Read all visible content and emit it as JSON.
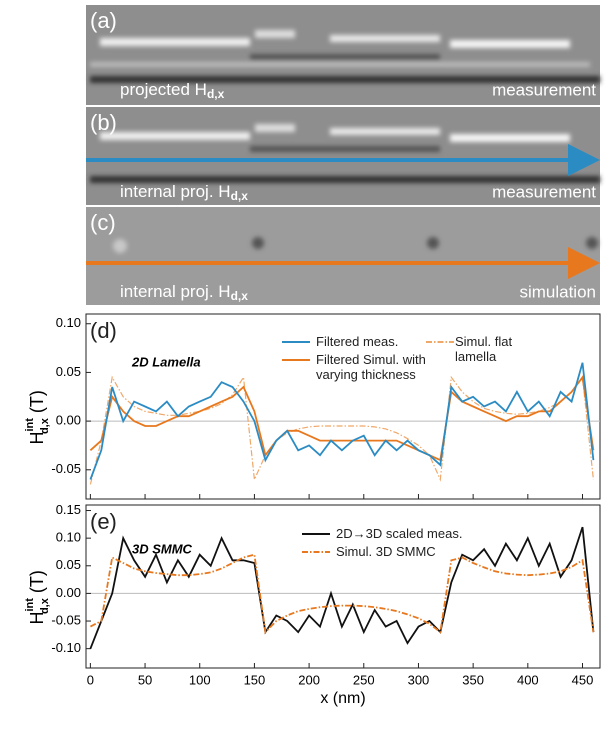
{
  "panels": [
    {
      "tag": "(a)",
      "label": "projected H",
      "label_sub": "d,x",
      "note": "measurement"
    },
    {
      "tag": "(b)",
      "label": "internal proj. H",
      "label_sub": "d,x",
      "note": "measurement"
    },
    {
      "tag": "(c)",
      "label": "internal proj. H",
      "label_sub": "d,x",
      "note": "simulation"
    }
  ],
  "chart_data": [
    {
      "type": "line",
      "tag": "(d)",
      "inset_label": "2D Lamella",
      "ylabel": {
        "main": "H",
        "sup": "int",
        "sub": "d,x",
        "unit": "(T)"
      },
      "xlim": [
        -4,
        466
      ],
      "xticks": [
        0,
        50,
        100,
        150,
        200,
        250,
        300,
        350,
        400,
        450
      ],
      "ylim": [
        -0.08,
        0.11
      ],
      "yticks": [
        -0.05,
        {
          "value": 0,
          "label": "0.00"
        },
        0.05,
        {
          "value": 0.1,
          "label": "0.10"
        }
      ],
      "zero_line": true,
      "x": [
        0,
        10,
        20,
        30,
        40,
        50,
        60,
        70,
        80,
        90,
        100,
        110,
        120,
        130,
        140,
        150,
        160,
        170,
        180,
        190,
        200,
        210,
        220,
        230,
        240,
        250,
        260,
        270,
        280,
        290,
        300,
        310,
        320,
        330,
        340,
        350,
        360,
        370,
        380,
        390,
        400,
        410,
        420,
        430,
        440,
        450,
        460
      ],
      "series": [
        {
          "name": "Simul. flat lamella",
          "color": "#f0a868",
          "dash": "dashdot",
          "values": [
            -0.065,
            -0.02,
            0.045,
            0.025,
            0.015,
            0.01,
            0.008,
            0.006,
            0.006,
            0.008,
            0.01,
            0.013,
            0.018,
            0.027,
            0.045,
            -0.06,
            -0.035,
            -0.02,
            -0.012,
            -0.008,
            -0.006,
            -0.005,
            -0.005,
            -0.005,
            -0.005,
            -0.005,
            -0.006,
            -0.008,
            -0.012,
            -0.018,
            -0.025,
            -0.035,
            -0.06,
            0.045,
            0.03,
            0.02,
            0.013,
            0.01,
            0.008,
            0.007,
            0.008,
            0.01,
            0.014,
            0.02,
            0.03,
            0.045,
            -0.06
          ]
        },
        {
          "name": "Filtered Simul. with varying thickness",
          "color": "#e8781e",
          "values": [
            -0.03,
            -0.02,
            0.025,
            0.01,
            0.0,
            -0.005,
            -0.005,
            0.0,
            0.005,
            0.005,
            0.01,
            0.015,
            0.02,
            0.025,
            0.035,
            0.01,
            -0.035,
            -0.02,
            -0.01,
            -0.01,
            -0.015,
            -0.02,
            -0.02,
            -0.02,
            -0.02,
            -0.02,
            -0.02,
            -0.02,
            -0.02,
            -0.025,
            -0.03,
            -0.035,
            -0.04,
            0.03,
            0.02,
            0.015,
            0.01,
            0.005,
            0.0,
            0.005,
            0.005,
            0.01,
            0.01,
            0.02,
            0.03,
            0.045,
            -0.03
          ]
        },
        {
          "name": "Filtered meas.",
          "color": "#2b8cc4",
          "values": [
            -0.06,
            -0.03,
            0.035,
            0.0,
            0.02,
            0.015,
            0.01,
            0.02,
            0.005,
            0.015,
            0.02,
            0.025,
            0.04,
            0.035,
            0.02,
            0.0,
            -0.04,
            -0.02,
            -0.01,
            -0.03,
            -0.025,
            -0.035,
            -0.02,
            -0.03,
            -0.02,
            -0.015,
            -0.035,
            -0.02,
            -0.03,
            -0.02,
            -0.03,
            -0.035,
            -0.045,
            0.035,
            0.02,
            0.025,
            0.015,
            0.02,
            0.01,
            0.03,
            0.01,
            0.02,
            0.005,
            0.03,
            0.02,
            0.06,
            -0.04
          ]
        }
      ]
    },
    {
      "type": "line",
      "tag": "(e)",
      "inset_label": "3D SMMC",
      "xlabel": "x (nm)",
      "ylabel": {
        "main": "H",
        "sup": "int",
        "sub": "d,x",
        "unit": "(T)"
      },
      "xlim": [
        -4,
        466
      ],
      "xticks": [
        0,
        50,
        100,
        150,
        200,
        250,
        300,
        350,
        400,
        450
      ],
      "ylim": [
        -0.135,
        0.16
      ],
      "yticks": [
        {
          "value": -0.1,
          "label": "-0.10"
        },
        -0.05,
        {
          "value": 0,
          "label": "0.00"
        },
        0.05,
        {
          "value": 0.1,
          "label": "0.10"
        },
        0.15
      ],
      "zero_line": true,
      "x": [
        0,
        10,
        20,
        30,
        40,
        50,
        60,
        70,
        80,
        90,
        100,
        110,
        120,
        130,
        140,
        150,
        160,
        170,
        180,
        190,
        200,
        210,
        220,
        230,
        240,
        250,
        260,
        270,
        280,
        290,
        300,
        310,
        320,
        330,
        340,
        350,
        360,
        370,
        380,
        390,
        400,
        410,
        420,
        430,
        440,
        450,
        460
      ],
      "series": [
        {
          "name": "2D→3D scaled meas.",
          "color": "#111111",
          "values": [
            -0.1,
            -0.05,
            0.0,
            0.1,
            0.06,
            0.03,
            0.07,
            0.02,
            0.06,
            0.03,
            0.07,
            0.05,
            0.1,
            0.06,
            0.06,
            0.055,
            -0.07,
            -0.04,
            -0.05,
            -0.07,
            -0.04,
            -0.06,
            0.0,
            -0.06,
            -0.02,
            -0.07,
            -0.03,
            -0.06,
            -0.05,
            -0.09,
            -0.06,
            -0.05,
            -0.07,
            0.02,
            0.07,
            0.06,
            0.08,
            0.05,
            0.09,
            0.06,
            0.1,
            0.05,
            0.09,
            0.03,
            0.06,
            0.12,
            -0.07
          ]
        },
        {
          "name": "Simul. 3D SMMC",
          "color": "#e8781e",
          "dash": "dashdot",
          "values": [
            -0.06,
            -0.05,
            0.065,
            0.055,
            0.045,
            0.04,
            0.037,
            0.035,
            0.033,
            0.033,
            0.035,
            0.038,
            0.045,
            0.055,
            0.065,
            0.07,
            -0.07,
            -0.05,
            -0.04,
            -0.032,
            -0.028,
            -0.025,
            -0.023,
            -0.022,
            -0.022,
            -0.023,
            -0.025,
            -0.028,
            -0.032,
            -0.038,
            -0.045,
            -0.055,
            -0.07,
            0.06,
            0.065,
            0.055,
            0.047,
            0.04,
            0.036,
            0.034,
            0.033,
            0.034,
            0.036,
            0.04,
            0.048,
            0.06,
            -0.07
          ]
        }
      ]
    }
  ]
}
